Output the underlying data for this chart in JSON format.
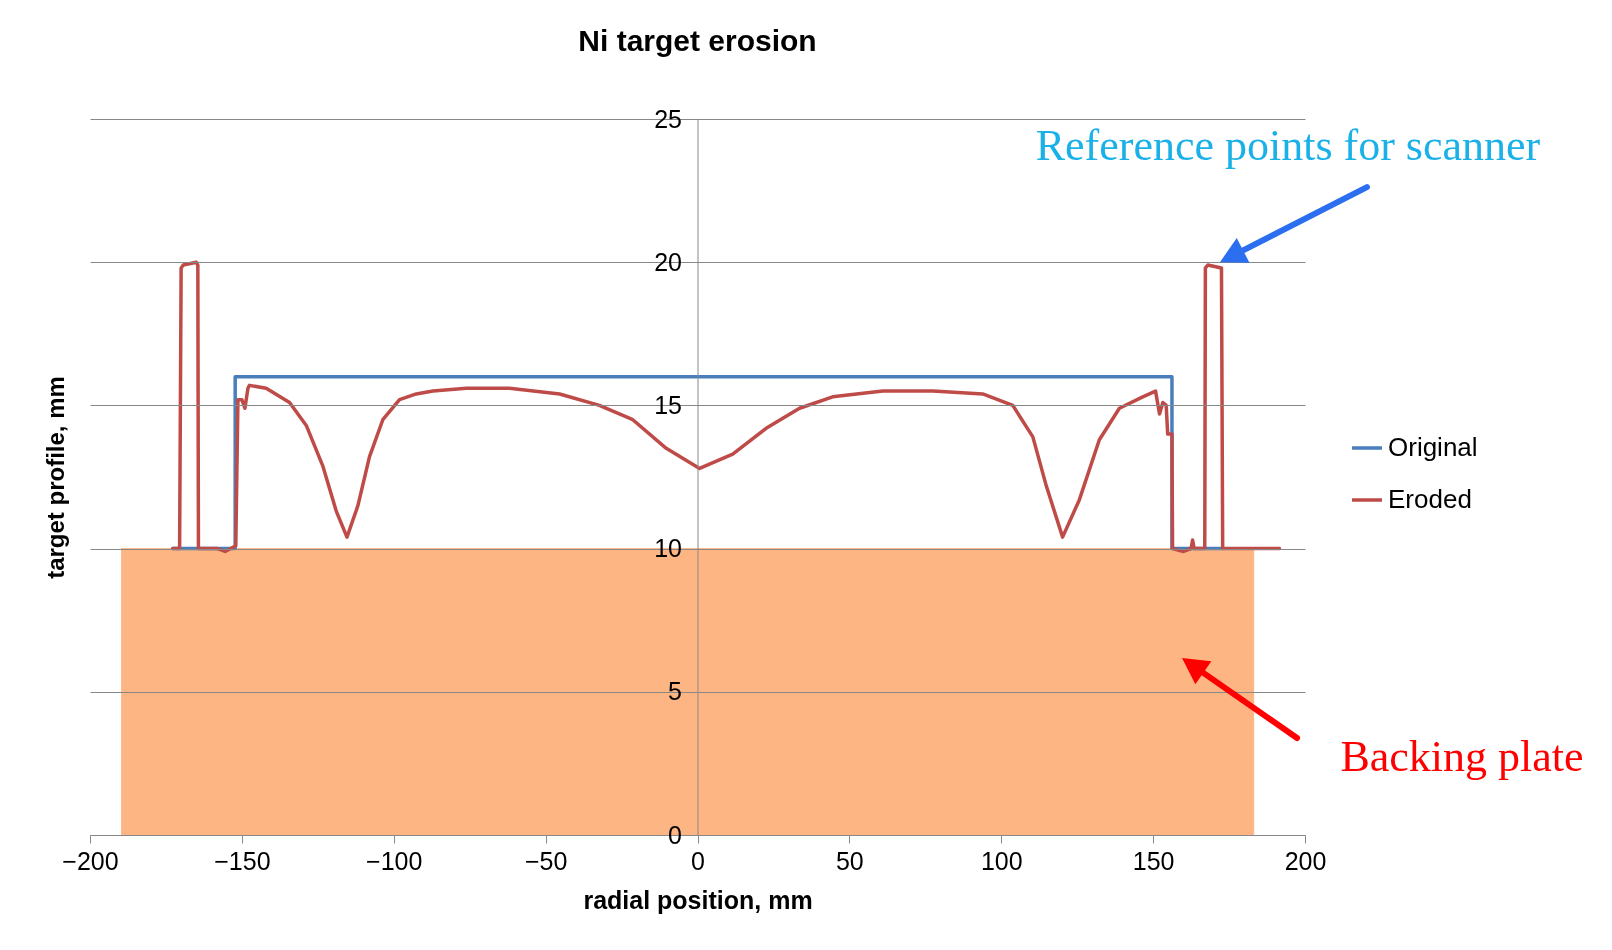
{
  "chart_data": {
    "type": "line",
    "title": "Ni target erosion",
    "xlabel": "radial position, mm",
    "ylabel": "target profile, mm",
    "xlim": [
      -200,
      200
    ],
    "xticks": [
      -200,
      -150,
      -100,
      -50,
      0,
      50,
      100,
      150,
      200
    ],
    "ylim": [
      0,
      25
    ],
    "yticks": [
      0,
      5,
      10,
      15,
      20,
      25
    ],
    "grid": "y",
    "legend": "right",
    "series": [
      {
        "name": "Original",
        "color": "#4a7ebb",
        "x": [
          -172.8,
          -152.2,
          -152.2,
          156.2,
          156.2,
          172.9
        ],
        "values": [
          10,
          10,
          16,
          16,
          10,
          10
        ]
      },
      {
        "name": "Eroded",
        "color": "#be4b48",
        "x": [
          -172.7,
          -170.5,
          -170,
          -169.3,
          -165,
          -164.5,
          -164.3,
          -158,
          -155.5,
          -152,
          -151.3,
          -150,
          -149,
          -148,
          -147.5,
          -142,
          -134.3,
          -128.8,
          -123.4,
          -118.9,
          -115.4,
          -111.8,
          -108,
          -103.6,
          -98.1,
          -92.6,
          -87.1,
          -76.1,
          -61.9,
          -45.4,
          -32.3,
          -21.3,
          -10.3,
          0.7,
          11.6,
          22.6,
          33.6,
          44.5,
          61,
          77.5,
          93.9,
          103.8,
          110.4,
          114.8,
          120.2,
          125.7,
          132.3,
          138.9,
          146.6,
          150.8,
          152.1,
          153.2,
          154.3,
          154.8,
          156.2,
          156.4,
          160,
          162.5,
          163,
          163.5,
          167,
          167.2,
          168,
          172.5,
          172.9,
          191.6
        ],
        "values": [
          10,
          10,
          19.8,
          19.9,
          20,
          19.9,
          10,
          10,
          9.9,
          10.1,
          15.2,
          15.2,
          14.9,
          15.6,
          15.7,
          15.6,
          15.1,
          14.3,
          12.9,
          11.3,
          10.4,
          11.5,
          13.2,
          14.5,
          15.2,
          15.4,
          15.5,
          15.6,
          15.6,
          15.4,
          15,
          14.5,
          13.5,
          12.8,
          13.3,
          14.2,
          14.9,
          15.3,
          15.5,
          15.5,
          15.4,
          15,
          13.9,
          12.2,
          10.4,
          11.7,
          13.8,
          14.9,
          15.3,
          15.5,
          14.7,
          15.1,
          15,
          14,
          14,
          10,
          9.9,
          10,
          10.3,
          10,
          10,
          19.8,
          19.9,
          19.8,
          10,
          10
        ]
      },
      {
        "type": "area",
        "color": "#fdb683",
        "x": [
          -189.6,
          183.1
        ],
        "values": [
          10,
          10
        ]
      }
    ],
    "annotations": [
      {
        "text": "Reference points for scanner",
        "x": 172,
        "y": 20
      },
      "Backing plate"
    ]
  }
}
